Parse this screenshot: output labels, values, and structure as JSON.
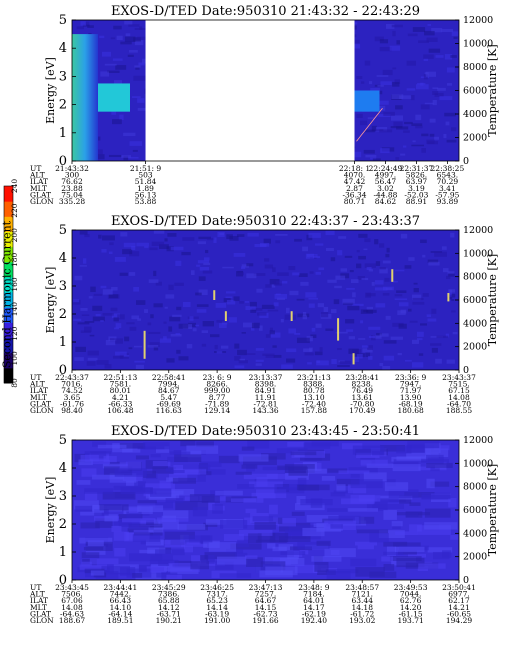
{
  "figure": {
    "colorbar": {
      "label": "Second Harmonic Current",
      "ticks": [
        "80",
        "100",
        "120",
        "140",
        "160",
        "180",
        "200",
        "220",
        "240"
      ],
      "colors": [
        "#000000",
        "#1a0066",
        "#1414a8",
        "#3a1fe0",
        "#1f5cff",
        "#00b4e6",
        "#00e0c8",
        "#00e060",
        "#7fe600",
        "#e8f000",
        "#ffb000",
        "#ff6000",
        "#ff1000"
      ]
    },
    "row_labels": [
      "UT",
      "ALT",
      "ILAT",
      "MLT",
      "GLAT",
      "GLON"
    ]
  },
  "chart_data": [
    {
      "type": "heatmap",
      "title": "EXOS-D/TED   Date:950310   21:43:32 - 22:43:29",
      "ylabel": "Energy [eV]",
      "y2label": "Temperature [K]",
      "ylim": [
        0,
        5
      ],
      "y2lim": [
        0,
        12000
      ],
      "yticks": [
        "0",
        "1",
        "2",
        "3",
        "4",
        "5"
      ],
      "y2ticks": [
        "0",
        "2000",
        "4000",
        "6000",
        "8000",
        "10000",
        "12000"
      ],
      "data_gap": [
        0.19,
        0.73
      ],
      "columns": [
        {
          "UT": "21:43:32",
          "ALT": "300",
          "ILAT": "76.62",
          "MLT": "23.88",
          "GLAT": "75.04",
          "GLON": "335.28"
        },
        {
          "UT": "21:51: 9",
          "ALT": "503",
          "ILAT": "51.84",
          "MLT": "1.89",
          "GLAT": "56.13",
          "GLON": "53.88"
        },
        {
          "UT": "22:18: 1",
          "ALT": "4070.",
          "ILAT": "47.42",
          "MLT": "2.87",
          "GLAT": "-36.34",
          "GLON": "80.71"
        },
        {
          "UT": "22:24:49",
          "ALT": "4997.",
          "ILAT": "56.47",
          "MLT": "3.02",
          "GLAT": "-44.88",
          "GLON": "84.62"
        },
        {
          "UT": "22:31:37",
          "ALT": "5826.",
          "ILAT": "63.97",
          "MLT": "3.19",
          "GLAT": "-52.03",
          "GLON": "88.91"
        },
        {
          "UT": "22:38:25",
          "ALT": "6543.",
          "ILAT": "70.29",
          "MLT": "3.41",
          "GLAT": "-57.95",
          "GLON": "93.89"
        }
      ],
      "column_pos": [
        0.0,
        0.19,
        0.73,
        0.81,
        0.89,
        0.97
      ]
    },
    {
      "type": "heatmap",
      "title": "EXOS-D/TED   Date:950310   22:43:37 - 23:43:37",
      "ylabel": "Energy [eV]",
      "y2label": "Temperature [K]",
      "ylim": [
        0,
        5
      ],
      "y2lim": [
        0,
        12000
      ],
      "yticks": [
        "0",
        "1",
        "2",
        "3",
        "4",
        "5"
      ],
      "y2ticks": [
        "0",
        "2000",
        "4000",
        "6000",
        "8000",
        "10000",
        "12000"
      ],
      "columns": [
        {
          "UT": "22:43:37",
          "ALT": "7016.",
          "ILAT": "74.52",
          "MLT": "3.65",
          "GLAT": "-61.76",
          "GLON": "98.40"
        },
        {
          "UT": "22:51:13",
          "ALT": "7581.",
          "ILAT": "80.01",
          "MLT": "4.21",
          "GLAT": "-66.33",
          "GLON": "106.48"
        },
        {
          "UT": "22:58:41",
          "ALT": "7994.",
          "ILAT": "84.67",
          "MLT": "5.47",
          "GLAT": "-69.69",
          "GLON": "116.63"
        },
        {
          "UT": "23: 6: 9",
          "ALT": "8266.",
          "ILAT": "999.00",
          "MLT": "8.77",
          "GLAT": "-71.89",
          "GLON": "129.14"
        },
        {
          "UT": "23:13:37",
          "ALT": "8398.",
          "ILAT": "84.91",
          "MLT": "11.91",
          "GLAT": "-72.81",
          "GLON": "143.36"
        },
        {
          "UT": "23:21:13",
          "ALT": "8388.",
          "ILAT": "80.78",
          "MLT": "13.10",
          "GLAT": "-72.40",
          "GLON": "157.88"
        },
        {
          "UT": "23:28:41",
          "ALT": "8238.",
          "ILAT": "76.49",
          "MLT": "13.61",
          "GLAT": "-70.80",
          "GLON": "170.49"
        },
        {
          "UT": "23:36: 9",
          "ALT": "7947.",
          "ILAT": "71.97",
          "MLT": "13.90",
          "GLAT": "-68.19",
          "GLON": "180.68"
        },
        {
          "UT": "23:43:37",
          "ALT": "7515.",
          "ILAT": "67.15",
          "MLT": "14.08",
          "GLAT": "-64.70",
          "GLON": "188.55"
        }
      ],
      "column_pos": [
        0.0,
        0.125,
        0.25,
        0.375,
        0.5,
        0.625,
        0.75,
        0.875,
        1.0
      ]
    },
    {
      "type": "heatmap",
      "title": "EXOS-D/TED   Date:950310   23:43:45 - 23:50:41",
      "ylabel": "Energy [eV]",
      "y2label": "Temperature [K]",
      "ylim": [
        0,
        5
      ],
      "y2lim": [
        0,
        12000
      ],
      "yticks": [
        "0",
        "1",
        "2",
        "3",
        "4",
        "5"
      ],
      "y2ticks": [
        "0",
        "2000",
        "4000",
        "6000",
        "8000",
        "10000",
        "12000"
      ],
      "columns": [
        {
          "UT": "23:43:45",
          "ALT": "7506.",
          "ILAT": "67.06",
          "MLT": "14.08",
          "GLAT": "-64.63",
          "GLON": "188.67"
        },
        {
          "UT": "23:44:41",
          "ALT": "7442.",
          "ILAT": "66.43",
          "MLT": "14.10",
          "GLAT": "-64.14",
          "GLON": "189.51"
        },
        {
          "UT": "23:45:29",
          "ALT": "7386.",
          "ILAT": "65.88",
          "MLT": "14.12",
          "GLAT": "-63.71",
          "GLON": "190.21"
        },
        {
          "UT": "23:46:25",
          "ALT": "7317.",
          "ILAT": "65.23",
          "MLT": "14.14",
          "GLAT": "-63.19",
          "GLON": "191.00"
        },
        {
          "UT": "23:47:13",
          "ALT": "7257.",
          "ILAT": "64.67",
          "MLT": "14.15",
          "GLAT": "-62.73",
          "GLON": "191.66"
        },
        {
          "UT": "23:48: 9",
          "ALT": "7184.",
          "ILAT": "64.01",
          "MLT": "14.17",
          "GLAT": "-62.19",
          "GLON": "192.40"
        },
        {
          "UT": "23:48:57",
          "ALT": "7121.",
          "ILAT": "63.44",
          "MLT": "14.18",
          "GLAT": "-61.72",
          "GLON": "193.02"
        },
        {
          "UT": "23:49:53",
          "ALT": "7044.",
          "ILAT": "62.76",
          "MLT": "14.20",
          "GLAT": "-61.15",
          "GLON": "193.71"
        },
        {
          "UT": "23:50:41",
          "ALT": "6977.",
          "ILAT": "62.17",
          "MLT": "14.21",
          "GLAT": "-60.65",
          "GLON": "194.29"
        }
      ],
      "column_pos": [
        0.0,
        0.125,
        0.25,
        0.375,
        0.5,
        0.625,
        0.75,
        0.875,
        1.0
      ]
    }
  ]
}
